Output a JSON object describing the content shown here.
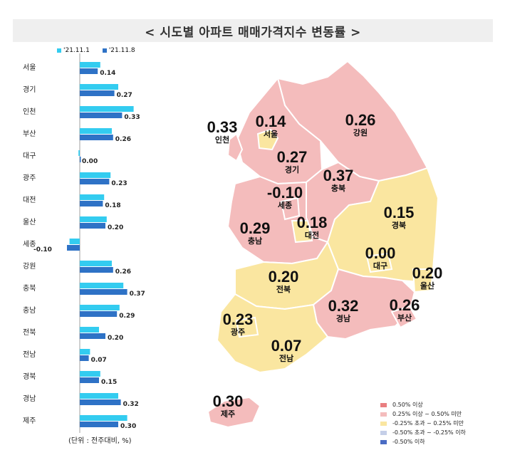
{
  "title": "< 시도별 아파트 매매가격지수 변동률 >",
  "unit_note": "(단위 : 전주대비, %)",
  "colors": {
    "series1": "#33ccf0",
    "series2": "#2e72c6",
    "map_high": "#e97e80",
    "map_mid_high": "#f4bcbc",
    "map_mid": "#fae6a0",
    "map_mid_low": "#c5cfe8",
    "map_low": "#4a6cc4",
    "outline": "#ffffff"
  },
  "map_legend": [
    {
      "label": "0.50% 이상",
      "color": "#e97e80"
    },
    {
      "label": "0.25% 이상 ~ 0.50% 미만",
      "color": "#f4bcbc"
    },
    {
      "label": "-0.25% 초과 ~ 0.25% 미만",
      "color": "#fae6a0"
    },
    {
      "label": "-0.50% 초과 ~ -0.25% 이하",
      "color": "#c5cfe8"
    },
    {
      "label": "-0.50% 이하",
      "color": "#4a6cc4"
    }
  ],
  "map_regions": [
    {
      "name": "인천",
      "value": "0.33"
    },
    {
      "name": "서울",
      "value": "0.14"
    },
    {
      "name": "강원",
      "value": "0.26"
    },
    {
      "name": "경기",
      "value": "0.27"
    },
    {
      "name": "충북",
      "value": "0.37"
    },
    {
      "name": "세종",
      "value": "-0.10"
    },
    {
      "name": "경북",
      "value": "0.15"
    },
    {
      "name": "충남",
      "value": "0.29"
    },
    {
      "name": "대전",
      "value": "0.18"
    },
    {
      "name": "대구",
      "value": "0.00"
    },
    {
      "name": "울산",
      "value": "0.20"
    },
    {
      "name": "전북",
      "value": "0.20"
    },
    {
      "name": "경남",
      "value": "0.32"
    },
    {
      "name": "부산",
      "value": "0.26"
    },
    {
      "name": "광주",
      "value": "0.23"
    },
    {
      "name": "전남",
      "value": "0.07"
    },
    {
      "name": "제주",
      "value": "0.30"
    }
  ],
  "chart_data": {
    "type": "bar",
    "orientation": "horizontal",
    "categories": [
      "서울",
      "경기",
      "인천",
      "부산",
      "대구",
      "광주",
      "대전",
      "울산",
      "세종",
      "강원",
      "충북",
      "충남",
      "전북",
      "전남",
      "경북",
      "경남",
      "제주"
    ],
    "series": [
      {
        "name": "'21.11.1",
        "values": [
          0.16,
          0.3,
          0.42,
          0.25,
          -0.01,
          0.24,
          0.19,
          0.21,
          -0.08,
          0.25,
          0.34,
          0.31,
          0.15,
          0.08,
          0.16,
          0.3,
          0.37
        ]
      },
      {
        "name": "'21.11.8",
        "values": [
          0.14,
          0.27,
          0.33,
          0.26,
          0.0,
          0.23,
          0.18,
          0.2,
          -0.1,
          0.26,
          0.37,
          0.29,
          0.2,
          0.07,
          0.15,
          0.32,
          0.3
        ]
      }
    ],
    "value_labels": [
      "0.14",
      "0.27",
      "0.33",
      "0.26",
      "0.00",
      "0.23",
      "0.18",
      "0.20",
      "-0.10",
      "0.26",
      "0.37",
      "0.29",
      "0.20",
      "0.07",
      "0.15",
      "0.32",
      "0.30"
    ]
  }
}
